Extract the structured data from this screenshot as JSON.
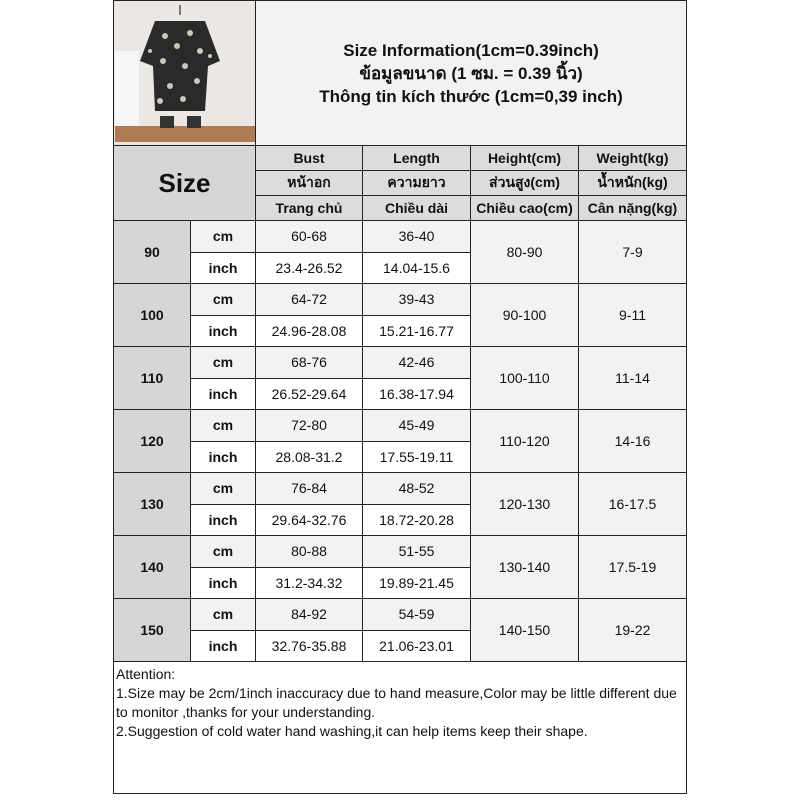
{
  "header": {
    "title_lines": [
      "Size Information(1cm=0.39inch)",
      "ข้อมูลขนาด (1 ซม. = 0.39 นิ้ว)",
      "Thông tin kích thước (1cm=0,39 inch)"
    ],
    "size_label": "Size",
    "columns": [
      [
        "Bust",
        "หน้าอก",
        "Trang chủ"
      ],
      [
        "Length",
        "ความยาว",
        "Chiều dài"
      ],
      [
        "Height(cm)",
        "ส่วนสูง(cm)",
        "Chiều cao(cm)"
      ],
      [
        "Weight(kg)",
        "น้ำหนัก(kg)",
        "Cân nặng(kg)"
      ]
    ]
  },
  "units": {
    "cm": "cm",
    "inch": "inch"
  },
  "rows": [
    {
      "size": "90",
      "bust_cm": "60-68",
      "length_cm": "36-40",
      "bust_in": "23.4-26.52",
      "length_in": "14.04-15.6",
      "height": "80-90",
      "weight": "7-9"
    },
    {
      "size": "100",
      "bust_cm": "64-72",
      "length_cm": "39-43",
      "bust_in": "24.96-28.08",
      "length_in": "15.21-16.77",
      "height": "90-100",
      "weight": "9-11"
    },
    {
      "size": "110",
      "bust_cm": "68-76",
      "length_cm": "42-46",
      "bust_in": "26.52-29.64",
      "length_in": "16.38-17.94",
      "height": "100-110",
      "weight": "11-14"
    },
    {
      "size": "120",
      "bust_cm": "72-80",
      "length_cm": "45-49",
      "bust_in": "28.08-31.2",
      "length_in": "17.55-19.11",
      "height": "110-120",
      "weight": "14-16"
    },
    {
      "size": "130",
      "bust_cm": "76-84",
      "length_cm": "48-52",
      "bust_in": "29.64-32.76",
      "length_in": "18.72-20.28",
      "height": "120-130",
      "weight": "16-17.5"
    },
    {
      "size": "140",
      "bust_cm": "80-88",
      "length_cm": "51-55",
      "bust_in": "31.2-34.32",
      "length_in": "19.89-21.45",
      "height": "130-140",
      "weight": "17.5-19"
    },
    {
      "size": "150",
      "bust_cm": "84-92",
      "length_cm": "54-59",
      "bust_in": "32.76-35.88",
      "length_in": "21.06-23.01",
      "height": "140-150",
      "weight": "19-22"
    }
  ],
  "attention": {
    "title": "Attention:",
    "lines": [
      "1.Size may be 2cm/1inch inaccuracy due to hand measure,Color may be little different due to monitor ,thanks for your understanding.",
      "2.Suggestion of cold water hand washing,it can help items keep their shape."
    ]
  }
}
